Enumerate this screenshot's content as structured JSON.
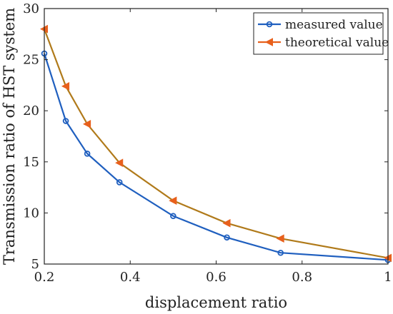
{
  "chart_data": {
    "type": "line",
    "xlabel": "displacement ratio",
    "ylabel": "Transmission ratio of HST system",
    "xlim": [
      0.2,
      1.0
    ],
    "ylim": [
      5,
      30
    ],
    "xticks": [
      "0.2",
      "0.4",
      "0.6",
      "0.8",
      "1"
    ],
    "yticks": [
      "5",
      "10",
      "15",
      "20",
      "25",
      "30"
    ],
    "grid": false,
    "legend_position": "top-right",
    "series": [
      {
        "name": "measured value",
        "color": "#1f5fbf",
        "marker": "circle",
        "x": [
          0.2,
          0.25,
          0.3,
          0.375,
          0.5,
          0.625,
          0.75,
          1.0
        ],
        "y": [
          25.6,
          19.0,
          15.8,
          13.0,
          9.7,
          7.6,
          6.1,
          5.4
        ]
      },
      {
        "name": "theoretical value",
        "color": "#e8601c",
        "line_color": "#b07a1a",
        "marker": "triangle-left",
        "x": [
          0.2,
          0.25,
          0.3,
          0.375,
          0.5,
          0.625,
          0.75,
          1.0
        ],
        "y": [
          28.0,
          22.4,
          18.7,
          14.9,
          11.2,
          9.0,
          7.5,
          5.6
        ]
      }
    ]
  }
}
